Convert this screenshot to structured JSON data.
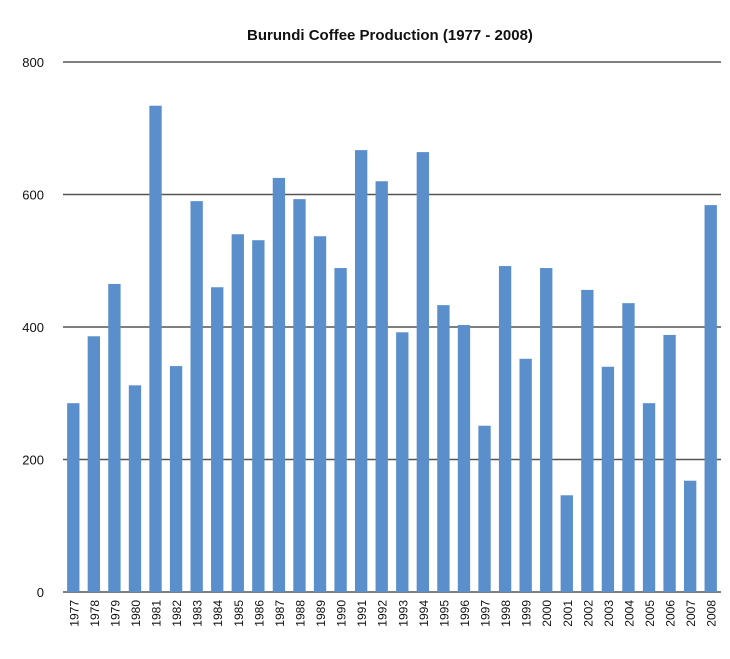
{
  "chart_data": {
    "type": "bar",
    "title": "Burundi Coffee Production  (1977 - 2008)",
    "categories": [
      "1977",
      "1978",
      "1979",
      "1980",
      "1981",
      "1982",
      "1983",
      "1984",
      "1985",
      "1986",
      "1987",
      "1988",
      "1989",
      "1990",
      "1991",
      "1992",
      "1993",
      "1994",
      "1995",
      "1996",
      "1997",
      "1998",
      "1999",
      "2000",
      "2001",
      "2002",
      "2003",
      "2004",
      "2005",
      "2006",
      "2007",
      "2008"
    ],
    "values": [
      285,
      386,
      465,
      312,
      734,
      341,
      590,
      460,
      540,
      531,
      625,
      593,
      537,
      489,
      667,
      620,
      392,
      664,
      433,
      403,
      251,
      492,
      352,
      489,
      146,
      456,
      340,
      436,
      285,
      388,
      168,
      584
    ],
    "color": "#5b8fcb",
    "ylim": [
      0,
      800
    ],
    "yticks": [
      0,
      200,
      400,
      600,
      800
    ],
    "grid": true
  }
}
